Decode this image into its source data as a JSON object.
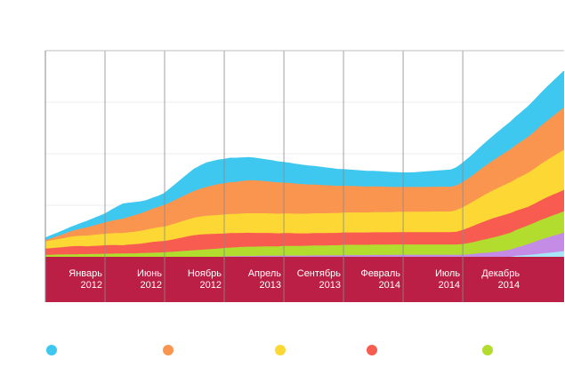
{
  "chart_data": {
    "type": "area",
    "stacked": true,
    "title": "",
    "xlabel": "",
    "ylabel": "",
    "ylim": [
      0,
      100
    ],
    "grid": true,
    "x_count": 88,
    "x_ticks": [
      {
        "index": 0,
        "month": "Январь",
        "year": "2012"
      },
      {
        "index": 10,
        "month": "Июнь",
        "year": "2012"
      },
      {
        "index": 20,
        "month": "Ноябрь",
        "year": "2012"
      },
      {
        "index": 30,
        "month": "Апрель",
        "year": "2013"
      },
      {
        "index": 40,
        "month": "Сентябрь",
        "year": "2013"
      },
      {
        "index": 50,
        "month": "Февраль",
        "year": "2014"
      },
      {
        "index": 60,
        "month": "Июль",
        "year": "2014"
      },
      {
        "index": 70,
        "month": "Декабрь",
        "year": "2014"
      }
    ],
    "base_band_color": "#bc1f45",
    "series": [
      {
        "name": "",
        "color": "#a7e5f7",
        "values": [
          0,
          0,
          0,
          0,
          0,
          0,
          0,
          0,
          0,
          0,
          0,
          0,
          0,
          0,
          0,
          0,
          0,
          0,
          0,
          0,
          0,
          0,
          0,
          0,
          0,
          0,
          0,
          0,
          0,
          0,
          0,
          0,
          0,
          0,
          0,
          0,
          0,
          0,
          0,
          0,
          0,
          0,
          0,
          0,
          0,
          0,
          0,
          0,
          0,
          0,
          0,
          0,
          0,
          0,
          0,
          0,
          0,
          0,
          0,
          0,
          0,
          0,
          0,
          0,
          0,
          0,
          0,
          0,
          0,
          0,
          0,
          0,
          0,
          0,
          0,
          0,
          0,
          0,
          0,
          0.5,
          0.7,
          0.9,
          1.2,
          1.5,
          1.8,
          2.1,
          2.4,
          2.8
        ]
      },
      {
        "name": "",
        "color": "#c58ce6",
        "values": [
          0,
          0,
          0,
          0,
          0,
          0,
          0,
          0,
          0,
          0,
          0,
          0,
          0,
          0,
          0,
          0,
          0,
          0,
          0,
          0,
          0,
          0,
          0,
          0,
          0,
          0,
          0,
          0,
          0,
          0,
          0.2,
          0.3,
          0.3,
          0.4,
          0.4,
          0.4,
          0.5,
          0.5,
          0.5,
          0.5,
          0.6,
          0.6,
          0.6,
          0.6,
          0.6,
          0.7,
          0.7,
          0.7,
          0.7,
          0.7,
          0.8,
          0.8,
          0.8,
          0.8,
          0.8,
          0.9,
          0.9,
          0.9,
          0.9,
          1,
          1,
          1,
          1,
          1,
          1,
          1,
          1,
          1,
          1,
          1,
          1,
          1.2,
          1.5,
          1.8,
          2,
          2.3,
          2.6,
          3,
          3.5,
          4,
          4.6,
          5.3,
          6,
          6.8,
          7.4,
          8,
          8.5,
          9
        ]
      },
      {
        "name": "",
        "color": "#b2dc2e",
        "values": [
          1,
          1,
          1.1,
          1.1,
          1.2,
          1.2,
          1.3,
          1.3,
          1.4,
          1.4,
          1.5,
          1.5,
          1.6,
          1.6,
          1.7,
          1.7,
          1.8,
          1.9,
          2,
          2.1,
          2.2,
          2.4,
          2.6,
          2.8,
          3,
          3.2,
          3.4,
          3.6,
          3.8,
          4,
          4.1,
          4.2,
          4.3,
          4.4,
          4.5,
          4.5,
          4.5,
          4.6,
          4.6,
          4.6,
          4.7,
          4.7,
          4.7,
          4.7,
          4.8,
          4.8,
          4.8,
          4.8,
          4.9,
          4.9,
          5,
          5,
          5,
          5,
          5,
          5,
          5,
          5,
          5,
          5,
          5,
          5,
          5,
          5,
          5,
          5,
          5,
          5,
          5,
          5,
          5.2,
          5.5,
          5.8,
          6.2,
          6.6,
          7,
          7.4,
          7.8,
          8.2,
          8.6,
          8.9,
          9.1,
          9.3,
          9.5,
          9.7,
          9.9,
          10.1,
          10.3
        ]
      },
      {
        "name": "",
        "color": "#f85c50",
        "values": [
          3,
          3.2,
          3.4,
          3.6,
          3.8,
          4,
          3.9,
          3.8,
          3.9,
          4,
          4.1,
          4.2,
          4.1,
          4,
          4.2,
          4.4,
          4.6,
          4.9,
          5.2,
          5.4,
          5.5,
          5.8,
          6.2,
          6.6,
          7,
          7.3,
          7.4,
          7.4,
          7.3,
          7.2,
          7,
          7,
          6.9,
          6.8,
          6.8,
          6.7,
          6.6,
          6.5,
          6.4,
          6.3,
          6.2,
          6.2,
          6.1,
          6.1,
          6,
          6,
          6,
          6,
          6,
          6,
          6,
          6,
          6,
          6,
          6,
          6,
          6,
          6,
          6,
          6,
          6,
          6,
          6,
          6,
          6,
          6,
          6,
          6,
          6,
          6.2,
          6.8,
          7.4,
          8,
          8.5,
          9,
          9.3,
          9.5,
          9.6,
          9.5,
          9.3,
          9.1,
          9,
          9.2,
          9.5,
          9.8,
          10,
          10.2,
          10.4
        ]
      },
      {
        "name": "",
        "color": "#fdd834",
        "values": [
          3.5,
          3.8,
          4,
          4.3,
          4.6,
          4.8,
          5,
          5.2,
          5.3,
          5.5,
          5.6,
          5.7,
          5.8,
          5.9,
          6,
          6.1,
          6.2,
          6.4,
          6.6,
          6.8,
          7,
          7.3,
          7.6,
          7.9,
          8.2,
          8.5,
          8.7,
          8.9,
          9,
          9.1,
          9.2,
          9.3,
          9.3,
          9.4,
          9.4,
          9.5,
          9.5,
          9.5,
          9.5,
          9.5,
          9.5,
          9.5,
          9.5,
          9.5,
          9.5,
          9.6,
          9.6,
          9.6,
          9.6,
          9.6,
          9.7,
          9.7,
          9.7,
          9.7,
          9.7,
          9.8,
          9.8,
          9.8,
          9.8,
          9.8,
          9.9,
          9.9,
          9.9,
          9.9,
          9.9,
          10,
          10,
          10,
          10,
          10.5,
          11,
          11.5,
          12,
          12.5,
          13,
          13.5,
          14,
          14.5,
          15,
          15.5,
          16,
          16.5,
          17,
          17.5,
          18,
          18.5,
          19,
          19.5
        ]
      },
      {
        "name": "",
        "color": "#fa9550",
        "values": [
          0.5,
          1,
          1.5,
          2,
          2.5,
          3,
          3.5,
          4,
          4.5,
          5,
          5.5,
          6,
          6.5,
          7,
          7.5,
          8,
          8.5,
          9,
          9.5,
          10,
          10.5,
          11,
          11.5,
          12,
          12.5,
          13,
          13.5,
          14,
          14.5,
          15,
          15.2,
          15.4,
          15.6,
          15.8,
          16,
          16,
          15.8,
          15.6,
          15.4,
          15.2,
          15,
          14.8,
          14.6,
          14.4,
          14.2,
          14,
          13.8,
          13.6,
          13.4,
          13.2,
          13,
          12.9,
          12.8,
          12.7,
          12.6,
          12.5,
          12.4,
          12.3,
          12.2,
          12.1,
          12,
          12,
          12,
          12,
          12,
          12,
          12,
          12,
          12,
          12,
          12.3,
          12.6,
          13,
          13.5,
          14,
          14.5,
          15,
          15.5,
          16,
          16.5,
          17,
          17.5,
          18,
          18.5,
          19,
          19.5,
          20,
          20.5
        ]
      },
      {
        "name": "",
        "color": "#3ec8f0",
        "values": [
          1,
          1.2,
          1.4,
          1.6,
          1.8,
          2,
          2.4,
          2.8,
          3.2,
          3.6,
          4,
          5,
          6,
          7,
          6.5,
          6,
          5.5,
          5,
          5,
          5,
          5.5,
          6.5,
          7.5,
          8.5,
          9.5,
          10.5,
          11,
          11.5,
          11.5,
          11.5,
          11.5,
          11.5,
          11.3,
          11.1,
          10.9,
          10.7,
          10.5,
          10.3,
          10.1,
          9.9,
          9.7,
          9.5,
          9.3,
          9.1,
          8.9,
          8.7,
          8.5,
          8.3,
          8.1,
          7.9,
          7.7,
          7.6,
          7.5,
          7.4,
          7.3,
          7.2,
          7.1,
          7,
          6.9,
          6.8,
          6.7,
          6.7,
          6.8,
          7,
          7.2,
          7.4,
          7.6,
          7.8,
          8,
          8.5,
          9,
          9.5,
          10,
          10.5,
          11,
          11.5,
          12,
          12.5,
          13,
          13.5,
          14,
          14.5,
          15,
          15.5,
          16,
          16.5,
          17,
          17.5
        ]
      }
    ]
  }
}
